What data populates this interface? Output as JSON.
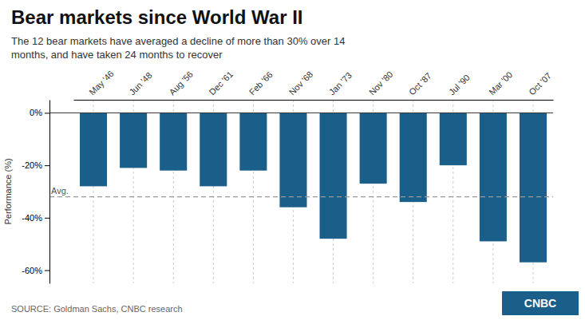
{
  "chart_data": {
    "type": "bar",
    "title": "Bear markets since World War II",
    "subtitle": "The 12 bear markets have averaged a decline of more than 30% over 14\nmonths, and have taken 24 months to recover",
    "categories": [
      "May '46",
      "Jun '48",
      "Aug '56",
      "Dec '61",
      "Feb '66",
      "Nov '68",
      "Jan '73",
      "Nov '80",
      "Oct '87",
      "Jul '90",
      "Mar '00",
      "Oct '07"
    ],
    "values": [
      -28,
      -21,
      -22,
      -28,
      -22,
      -36,
      -48,
      -27,
      -34,
      -20,
      -49,
      -57
    ],
    "color": "#1a5e8a",
    "ylabel": "Performance (%)",
    "ylim": [
      -65,
      5
    ],
    "yticks": [
      {
        "value": 0,
        "label": "0%"
      },
      {
        "value": -20,
        "label": "-20%"
      },
      {
        "value": -40,
        "label": "-40%"
      },
      {
        "value": -60,
        "label": "-60%"
      }
    ],
    "grid": true,
    "annotations": [
      {
        "text": "Avg.",
        "y": -32
      }
    ],
    "source": "SOURCE: Goldman Sachs, CNBC research",
    "logo": "CNBC"
  }
}
